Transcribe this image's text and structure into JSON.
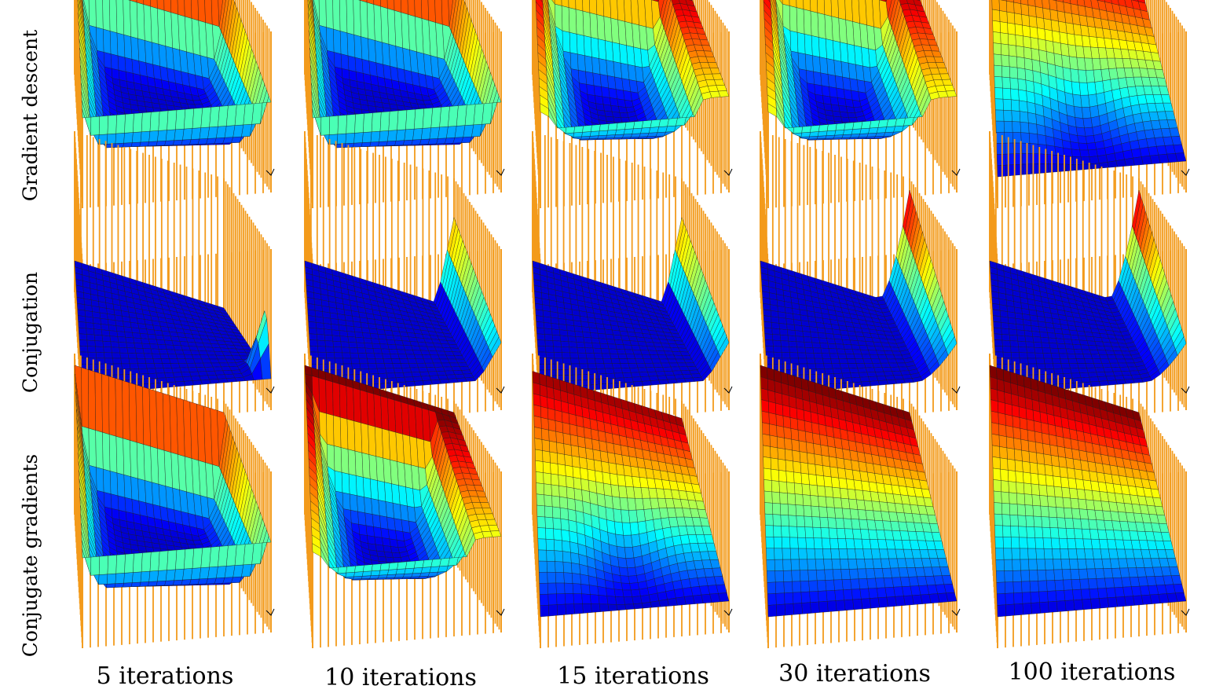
{
  "row_labels": [
    "Gradient descent",
    "Conjugation",
    "Conjugate gradients"
  ],
  "column_labels": [
    "5 iterations",
    "10 iterations",
    "15 iterations",
    "30 iterations",
    "100 iterations"
  ],
  "colors": {
    "grid_posts": "#f39b1c",
    "colormap": [
      "#00007f",
      "#0000ff",
      "#00ffff",
      "#ffff00",
      "#ff0000",
      "#800000"
    ],
    "background": "#ffffff"
  },
  "surfaces": [
    [
      {
        "method": "gradient_descent",
        "iterations": 5,
        "shape": "bowl_edges"
      },
      {
        "method": "gradient_descent",
        "iterations": 10,
        "shape": "bowl_edges"
      },
      {
        "method": "gradient_descent",
        "iterations": 15,
        "shape": "bowl_deep"
      },
      {
        "method": "gradient_descent",
        "iterations": 30,
        "shape": "bowl_deep"
      },
      {
        "method": "gradient_descent",
        "iterations": 100,
        "shape": "bowl_plane"
      }
    ],
    [
      {
        "method": "conjugation",
        "iterations": 5,
        "shape": "corner_spike"
      },
      {
        "method": "conjugation",
        "iterations": 10,
        "shape": "edge_ridge"
      },
      {
        "method": "conjugation",
        "iterations": 15,
        "shape": "edge_ridge"
      },
      {
        "method": "conjugation",
        "iterations": 30,
        "shape": "edge_wall"
      },
      {
        "method": "conjugation",
        "iterations": 100,
        "shape": "edge_wall"
      }
    ],
    [
      {
        "method": "conjugate_gradients",
        "iterations": 5,
        "shape": "bowl_edges"
      },
      {
        "method": "conjugate_gradients",
        "iterations": 10,
        "shape": "bowl_deep"
      },
      {
        "method": "conjugate_gradients",
        "iterations": 15,
        "shape": "bowl_plane"
      },
      {
        "method": "conjugate_gradients",
        "iterations": 30,
        "shape": "plane"
      },
      {
        "method": "conjugate_gradients",
        "iterations": 100,
        "shape": "plane"
      }
    ]
  ]
}
